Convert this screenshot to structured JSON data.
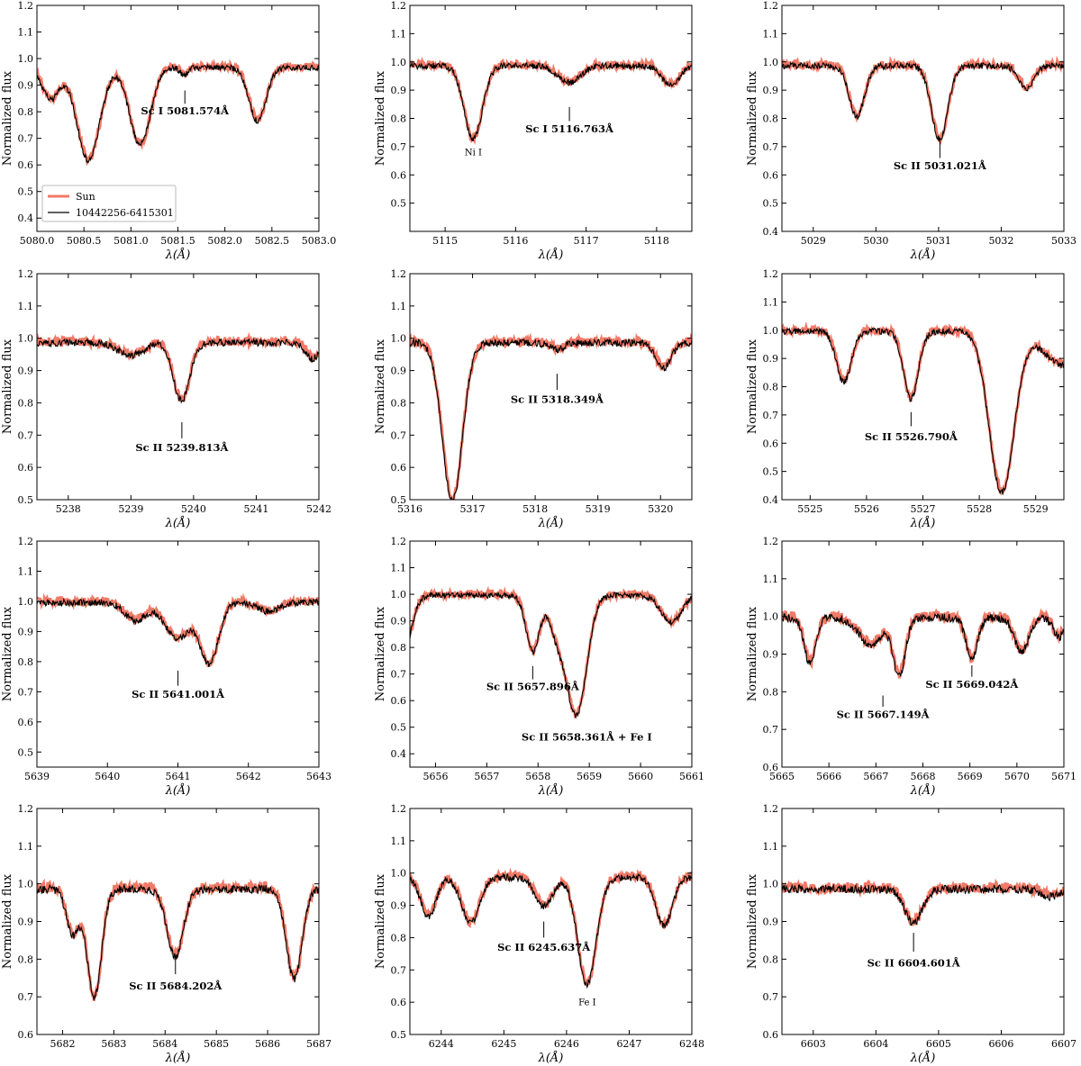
{
  "figure": {
    "xlabel": "λ(Å)",
    "ylabel": "Normalized flux",
    "colors": {
      "sun": "#f07a68",
      "star": "#000000"
    },
    "legend": {
      "placement": "lower-left",
      "entries": [
        "Sun",
        "10442256-6415301"
      ]
    }
  },
  "chart_data": [
    {
      "type": "line",
      "xlim": [
        5080.0,
        5083.0
      ],
      "ylim": [
        0.35,
        1.2
      ],
      "xticks": [
        5080.0,
        5080.5,
        5081.0,
        5081.5,
        5082.0,
        5082.5,
        5083.0
      ],
      "xtick_labels": [
        "5080.0",
        "5080.5",
        "5081.0",
        "5081.5",
        "5082.0",
        "5082.5",
        "5083.0"
      ],
      "yticks": [
        0.4,
        0.5,
        0.6,
        0.7,
        0.8,
        0.9,
        1.0,
        1.1,
        1.2
      ],
      "ytick_labels": [
        "0.4",
        "0.5",
        "0.6",
        "0.7",
        "0.8",
        "0.9",
        "1.0",
        "1.1",
        "1.2"
      ],
      "continuum": 0.97,
      "lines": [
        {
          "c": 5080.15,
          "d": 0.12,
          "w": 0.09
        },
        {
          "c": 5080.55,
          "d": 0.35,
          "w": 0.12
        },
        {
          "c": 5081.1,
          "d": 0.29,
          "w": 0.11
        },
        {
          "c": 5081.57,
          "d": 0.03,
          "w": 0.04
        },
        {
          "c": 5082.35,
          "d": 0.2,
          "w": 0.09
        }
      ],
      "annotations": [
        {
          "text": "Sc I 5081.574Å",
          "x": 5081.574,
          "tick_y": [
            0.88,
            0.83
          ],
          "label_y": 0.79,
          "style": "bold"
        }
      ],
      "legend": true
    },
    {
      "type": "line",
      "xlim": [
        5114.5,
        5118.5
      ],
      "ylim": [
        0.4,
        1.2
      ],
      "xticks": [
        5115,
        5116,
        5117,
        5118
      ],
      "xtick_labels": [
        "5115",
        "5116",
        "5117",
        "5118"
      ],
      "yticks": [
        0.5,
        0.6,
        0.7,
        0.8,
        0.9,
        1.0,
        1.1,
        1.2
      ],
      "ytick_labels": [
        "0.5",
        "0.6",
        "0.7",
        "0.8",
        "0.9",
        "1.0",
        "1.1",
        "1.2"
      ],
      "continuum": 0.99,
      "lines": [
        {
          "c": 5115.4,
          "d": 0.26,
          "w": 0.13
        },
        {
          "c": 5116.76,
          "d": 0.06,
          "w": 0.16
        },
        {
          "c": 5118.2,
          "d": 0.07,
          "w": 0.12
        }
      ],
      "annotations": [
        {
          "text": "Sc I 5116.763Å",
          "x": 5116.763,
          "tick_y": [
            0.84,
            0.79
          ],
          "label_y": 0.75,
          "style": "bold"
        },
        {
          "text": "Ni I",
          "x": 5115.4,
          "tick_y": null,
          "label_y": 0.67,
          "style": "small"
        }
      ]
    },
    {
      "type": "line",
      "xlim": [
        5028.5,
        5033.0
      ],
      "ylim": [
        0.4,
        1.2
      ],
      "xticks": [
        5029,
        5030,
        5031,
        5032,
        5033
      ],
      "xtick_labels": [
        "5029",
        "5030",
        "5031",
        "5032",
        "5033"
      ],
      "yticks": [
        0.4,
        0.5,
        0.6,
        0.7,
        0.8,
        0.9,
        1.0,
        1.1,
        1.2
      ],
      "ytick_labels": [
        "0.4",
        "0.5",
        "0.6",
        "0.7",
        "0.8",
        "0.9",
        "1.0",
        "1.1",
        "1.2"
      ],
      "continuum": 0.99,
      "lines": [
        {
          "c": 5029.7,
          "d": 0.18,
          "w": 0.12
        },
        {
          "c": 5031.02,
          "d": 0.26,
          "w": 0.13
        },
        {
          "c": 5032.4,
          "d": 0.08,
          "w": 0.12
        }
      ],
      "annotations": [
        {
          "text": "Sc II 5031.021Å",
          "x": 5031.021,
          "tick_y": [
            0.72,
            0.66
          ],
          "label_y": 0.62,
          "style": "bold"
        }
      ]
    },
    {
      "type": "line",
      "xlim": [
        5237.5,
        5242.0
      ],
      "ylim": [
        0.5,
        1.2
      ],
      "xticks": [
        5238,
        5239,
        5240,
        5241,
        5242
      ],
      "xtick_labels": [
        "5238",
        "5239",
        "5240",
        "5241",
        "5242"
      ],
      "yticks": [
        0.5,
        0.6,
        0.7,
        0.8,
        0.9,
        1.0,
        1.1,
        1.2
      ],
      "ytick_labels": [
        "0.5",
        "0.6",
        "0.7",
        "0.8",
        "0.9",
        "1.0",
        "1.1",
        "1.2"
      ],
      "continuum": 0.99,
      "lines": [
        {
          "c": 5239.0,
          "d": 0.04,
          "w": 0.2
        },
        {
          "c": 5239.81,
          "d": 0.18,
          "w": 0.13
        },
        {
          "c": 5241.9,
          "d": 0.05,
          "w": 0.1
        }
      ],
      "annotations": [
        {
          "text": "Sc II 5239.813Å",
          "x": 5239.813,
          "tick_y": [
            0.74,
            0.69
          ],
          "label_y": 0.65,
          "style": "bold"
        }
      ]
    },
    {
      "type": "line",
      "xlim": [
        5316.0,
        5320.5
      ],
      "ylim": [
        0.5,
        1.2
      ],
      "xticks": [
        5316,
        5317,
        5318,
        5319,
        5320
      ],
      "xtick_labels": [
        "5316",
        "5317",
        "5318",
        "5319",
        "5320"
      ],
      "yticks": [
        0.5,
        0.6,
        0.7,
        0.8,
        0.9,
        1.0,
        1.1,
        1.2
      ],
      "ytick_labels": [
        "0.5",
        "0.6",
        "0.7",
        "0.8",
        "0.9",
        "1.0",
        "1.1",
        "1.2"
      ],
      "continuum": 0.99,
      "lines": [
        {
          "c": 5316.68,
          "d": 0.49,
          "w": 0.16
        },
        {
          "c": 5318.35,
          "d": 0.02,
          "w": 0.12
        },
        {
          "c": 5320.05,
          "d": 0.08,
          "w": 0.12
        }
      ],
      "annotations": [
        {
          "text": "Sc II 5318.349Å",
          "x": 5318.349,
          "tick_y": [
            0.89,
            0.84
          ],
          "label_y": 0.8,
          "style": "bold"
        }
      ]
    },
    {
      "type": "line",
      "xlim": [
        5524.5,
        5529.5
      ],
      "ylim": [
        0.4,
        1.2
      ],
      "xticks": [
        5525,
        5526,
        5527,
        5528,
        5529
      ],
      "xtick_labels": [
        "5525",
        "5526",
        "5527",
        "5528",
        "5529"
      ],
      "yticks": [
        0.4,
        0.5,
        0.6,
        0.7,
        0.8,
        0.9,
        1.0,
        1.1,
        1.2
      ],
      "ytick_labels": [
        "0.4",
        "0.5",
        "0.6",
        "0.7",
        "0.8",
        "0.9",
        "1.0",
        "1.1",
        "1.2"
      ],
      "continuum": 1.0,
      "lines": [
        {
          "c": 5525.6,
          "d": 0.18,
          "w": 0.13
        },
        {
          "c": 5526.79,
          "d": 0.24,
          "w": 0.13
        },
        {
          "c": 5528.4,
          "d": 0.57,
          "w": 0.22
        },
        {
          "c": 5529.5,
          "d": 0.12,
          "w": 0.35
        }
      ],
      "annotations": [
        {
          "text": "Sc II 5526.790Å",
          "x": 5526.79,
          "tick_y": [
            0.71,
            0.66
          ],
          "label_y": 0.61,
          "style": "bold"
        }
      ]
    },
    {
      "type": "line",
      "xlim": [
        5639.0,
        5643.0
      ],
      "ylim": [
        0.45,
        1.2
      ],
      "xticks": [
        5639,
        5640,
        5641,
        5642,
        5643
      ],
      "xtick_labels": [
        "5639",
        "5640",
        "5641",
        "5642",
        "5643"
      ],
      "yticks": [
        0.5,
        0.6,
        0.7,
        0.8,
        0.9,
        1.0,
        1.1,
        1.2
      ],
      "ytick_labels": [
        "0.5",
        "0.6",
        "0.7",
        "0.8",
        "0.9",
        "1.0",
        "1.1",
        "1.2"
      ],
      "continuum": 1.0,
      "lines": [
        {
          "c": 5640.4,
          "d": 0.06,
          "w": 0.15
        },
        {
          "c": 5641.0,
          "d": 0.12,
          "w": 0.18
        },
        {
          "c": 5641.45,
          "d": 0.2,
          "w": 0.13
        },
        {
          "c": 5642.3,
          "d": 0.03,
          "w": 0.15
        }
      ],
      "annotations": [
        {
          "text": "Sc II 5641.001Å",
          "x": 5641.001,
          "tick_y": [
            0.77,
            0.72
          ],
          "label_y": 0.68,
          "style": "bold"
        }
      ]
    },
    {
      "type": "line",
      "xlim": [
        5655.5,
        5661.0
      ],
      "ylim": [
        0.35,
        1.2
      ],
      "xticks": [
        5656,
        5657,
        5658,
        5659,
        5660,
        5661
      ],
      "xtick_labels": [
        "5656",
        "5657",
        "5658",
        "5659",
        "5660",
        "5661"
      ],
      "yticks": [
        0.4,
        0.5,
        0.6,
        0.7,
        0.8,
        0.9,
        1.0,
        1.1,
        1.2
      ],
      "ytick_labels": [
        "0.4",
        "0.5",
        "0.6",
        "0.7",
        "0.8",
        "0.9",
        "1.0",
        "1.1",
        "1.2"
      ],
      "continuum": 1.0,
      "lines": [
        {
          "c": 5655.3,
          "d": 0.3,
          "w": 0.18
        },
        {
          "c": 5657.9,
          "d": 0.21,
          "w": 0.13
        },
        {
          "c": 5658.36,
          "d": 0.12,
          "w": 0.15
        },
        {
          "c": 5658.75,
          "d": 0.45,
          "w": 0.2
        },
        {
          "c": 5660.6,
          "d": 0.1,
          "w": 0.2
        }
      ],
      "annotations": [
        {
          "text": "Sc II 5657.896Å",
          "x": 5657.896,
          "tick_y": [
            0.73,
            0.68
          ],
          "label_y": 0.64,
          "style": "bold"
        },
        {
          "text": "Sc II 5658.361Å + Fe I",
          "x": 5658.95,
          "tick_y": null,
          "label_y": 0.45,
          "style": "bold"
        }
      ]
    },
    {
      "type": "line",
      "xlim": [
        5665.0,
        5671.0
      ],
      "ylim": [
        0.6,
        1.2
      ],
      "xticks": [
        5665,
        5666,
        5667,
        5668,
        5669,
        5670,
        5671
      ],
      "xtick_labels": [
        "5665",
        "5666",
        "5667",
        "5668",
        "5669",
        "5670",
        "5671"
      ],
      "yticks": [
        0.6,
        0.7,
        0.8,
        0.9,
        1.0,
        1.1,
        1.2
      ],
      "ytick_labels": [
        "0.6",
        "0.7",
        "0.8",
        "0.9",
        "1.0",
        "1.1",
        "1.2"
      ],
      "continuum": 1.0,
      "lines": [
        {
          "c": 5665.6,
          "d": 0.12,
          "w": 0.12
        },
        {
          "c": 5666.9,
          "d": 0.07,
          "w": 0.25
        },
        {
          "c": 5667.5,
          "d": 0.15,
          "w": 0.13
        },
        {
          "c": 5669.04,
          "d": 0.11,
          "w": 0.12
        },
        {
          "c": 5670.1,
          "d": 0.09,
          "w": 0.15
        },
        {
          "c": 5670.9,
          "d": 0.05,
          "w": 0.12
        }
      ],
      "annotations": [
        {
          "text": "Sc II 5667.149Å",
          "x": 5667.149,
          "tick_y": [
            0.79,
            0.76
          ],
          "label_y": 0.73,
          "style": "bold"
        },
        {
          "text": "Sc II 5669.042Å",
          "x": 5669.042,
          "tick_y": [
            0.87,
            0.84
          ],
          "label_y": 0.81,
          "style": "bold"
        }
      ]
    },
    {
      "type": "line",
      "xlim": [
        5681.5,
        5687.0
      ],
      "ylim": [
        0.6,
        1.2
      ],
      "xticks": [
        5682,
        5683,
        5684,
        5685,
        5686,
        5687
      ],
      "xtick_labels": [
        "5682",
        "5683",
        "5684",
        "5685",
        "5686",
        "5687"
      ],
      "yticks": [
        0.6,
        0.7,
        0.8,
        0.9,
        1.0,
        1.1,
        1.2
      ],
      "ytick_labels": [
        "0.6",
        "0.7",
        "0.8",
        "0.9",
        "1.0",
        "1.1",
        "1.2"
      ],
      "continuum": 0.99,
      "lines": [
        {
          "c": 5682.2,
          "d": 0.12,
          "w": 0.12
        },
        {
          "c": 5682.62,
          "d": 0.29,
          "w": 0.14
        },
        {
          "c": 5684.2,
          "d": 0.18,
          "w": 0.16
        },
        {
          "c": 5686.52,
          "d": 0.24,
          "w": 0.15
        }
      ],
      "annotations": [
        {
          "text": "Sc II 5684.202Å",
          "x": 5684.202,
          "tick_y": [
            0.81,
            0.76
          ],
          "label_y": 0.72,
          "style": "bold"
        }
      ]
    },
    {
      "type": "line",
      "xlim": [
        6243.5,
        6248.0
      ],
      "ylim": [
        0.5,
        1.2
      ],
      "xticks": [
        6244,
        6245,
        6246,
        6247,
        6248
      ],
      "xtick_labels": [
        "6244",
        "6245",
        "6246",
        "6247",
        "6248"
      ],
      "yticks": [
        0.5,
        0.6,
        0.7,
        0.8,
        0.9,
        1.0,
        1.1,
        1.2
      ],
      "ytick_labels": [
        "0.5",
        "0.6",
        "0.7",
        "0.8",
        "0.9",
        "1.0",
        "1.1",
        "1.2"
      ],
      "continuum": 0.99,
      "lines": [
        {
          "c": 6243.8,
          "d": 0.12,
          "w": 0.12
        },
        {
          "c": 6244.47,
          "d": 0.14,
          "w": 0.14
        },
        {
          "c": 6245.64,
          "d": 0.09,
          "w": 0.14
        },
        {
          "c": 6246.33,
          "d": 0.33,
          "w": 0.15
        },
        {
          "c": 6247.56,
          "d": 0.15,
          "w": 0.13
        }
      ],
      "annotations": [
        {
          "text": "Sc II 6245.637Å",
          "x": 6245.637,
          "tick_y": [
            0.85,
            0.8
          ],
          "label_y": 0.76,
          "style": "bold"
        },
        {
          "text": "Fe I",
          "x": 6246.33,
          "tick_y": null,
          "label_y": 0.59,
          "style": "small"
        }
      ]
    },
    {
      "type": "line",
      "xlim": [
        6602.5,
        6607.0
      ],
      "ylim": [
        0.6,
        1.2
      ],
      "xticks": [
        6603,
        6604,
        6605,
        6606,
        6607
      ],
      "xtick_labels": [
        "6603",
        "6604",
        "6605",
        "6606",
        "6607"
      ],
      "yticks": [
        0.6,
        0.7,
        0.8,
        0.9,
        1.0,
        1.1,
        1.2
      ],
      "ytick_labels": [
        "0.6",
        "0.7",
        "0.8",
        "0.9",
        "1.0",
        "1.1",
        "1.2"
      ],
      "continuum": 0.99,
      "lines": [
        {
          "c": 6604.6,
          "d": 0.09,
          "w": 0.14
        },
        {
          "c": 6606.8,
          "d": 0.02,
          "w": 0.15
        }
      ],
      "annotations": [
        {
          "text": "Sc II 6604.601Å",
          "x": 6604.601,
          "tick_y": [
            0.87,
            0.82
          ],
          "label_y": 0.78,
          "style": "bold"
        }
      ]
    }
  ]
}
